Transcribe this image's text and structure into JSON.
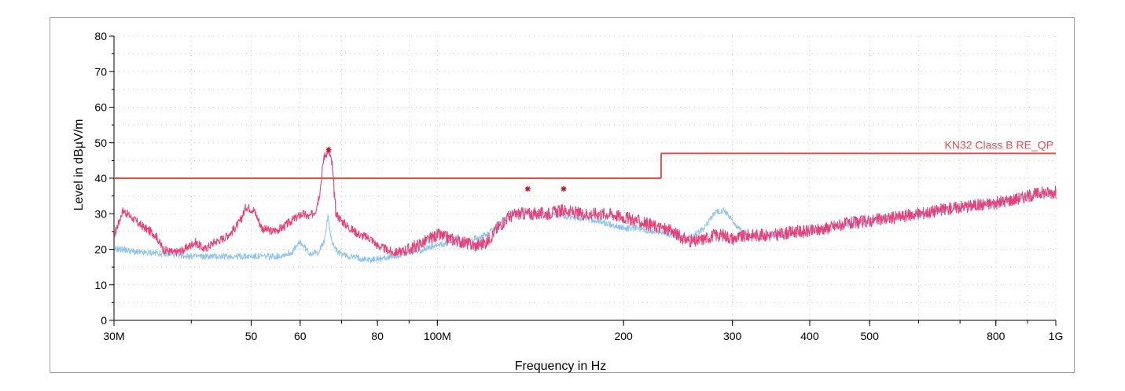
{
  "chart_data": {
    "type": "line",
    "xlabel": "Frequency in Hz",
    "ylabel": "Level in dBµV/m",
    "xscale": "log",
    "xlim": [
      30000000,
      1000000000
    ],
    "ylim": [
      0,
      80
    ],
    "grid": true,
    "x_ticks": [
      {
        "value": 30000000,
        "label": "30M"
      },
      {
        "value": 50000000,
        "label": "50"
      },
      {
        "value": 60000000,
        "label": "60"
      },
      {
        "value": 80000000,
        "label": "80"
      },
      {
        "value": 100000000,
        "label": "100M"
      },
      {
        "value": 200000000,
        "label": "200"
      },
      {
        "value": 300000000,
        "label": "300"
      },
      {
        "value": 400000000,
        "label": "400"
      },
      {
        "value": 500000000,
        "label": "500"
      },
      {
        "value": 800000000,
        "label": "800"
      },
      {
        "value": 1000000000,
        "label": "1G"
      }
    ],
    "y_ticks": [
      0,
      10,
      20,
      30,
      40,
      50,
      60,
      70,
      80
    ],
    "limit_line": {
      "name": "KN32 Class B RE_QP",
      "color": "#e05050",
      "segments": [
        {
          "x": [
            30000000,
            230000000
          ],
          "y": [
            40,
            40
          ]
        },
        {
          "x": [
            230000000,
            1000000000
          ],
          "y": [
            47,
            47
          ]
        }
      ]
    },
    "series": [
      {
        "color": "#e8407a",
        "x": [
          30000000,
          31000000,
          33000000,
          35000000,
          36000000,
          37500000,
          39000000,
          40500000,
          42000000,
          43500000,
          45000000,
          46500000,
          48000000,
          49000000,
          50500000,
          52000000,
          54000000,
          56000000,
          58000000,
          60500000,
          62000000,
          63500000,
          64500000,
          65500000,
          66700000,
          67500000,
          68500000,
          70000000,
          72000000,
          75000000,
          78000000,
          80000000,
          85000000,
          90000000,
          95000000,
          100000000,
          105000000,
          110000000,
          115000000,
          120000000,
          125000000,
          130000000,
          135000000,
          140000000,
          150000000,
          160000000,
          170000000,
          180000000,
          190000000,
          200000000,
          210000000,
          220000000,
          230000000,
          240000000,
          250000000,
          260000000,
          270000000,
          280000000,
          290000000,
          300000000,
          320000000,
          350000000,
          380000000,
          400000000,
          450000000,
          500000000,
          550000000,
          600000000,
          700000000,
          800000000,
          850000000,
          900000000,
          950000000,
          1000000000
        ],
        "y": [
          24,
          31,
          27,
          24,
          20,
          19,
          20,
          22,
          20,
          22,
          23,
          25,
          28,
          32,
          31,
          26,
          25,
          26,
          28,
          30,
          29,
          31,
          36,
          46,
          48,
          44,
          30,
          28,
          26,
          24,
          23,
          21,
          19,
          20,
          22,
          24,
          23,
          22,
          21,
          22,
          26,
          29,
          30,
          30,
          30,
          31,
          30,
          30,
          30,
          29,
          28,
          27,
          26,
          25,
          23,
          22,
          23,
          24,
          24,
          23,
          24,
          24,
          25,
          25,
          27,
          28,
          29,
          30,
          32,
          33,
          34,
          35,
          36,
          36
        ]
      },
      {
        "color": "#8ec4ec",
        "x": [
          30000000,
          31000000,
          33000000,
          35000000,
          40000000,
          45000000,
          50000000,
          55000000,
          58000000,
          60000000,
          62000000,
          64000000,
          65500000,
          66500000,
          67500000,
          69000000,
          72000000,
          78000000,
          85000000,
          90000000,
          95000000,
          100000000,
          105000000,
          110000000,
          115000000,
          120000000,
          125000000,
          130000000,
          135000000,
          140000000,
          150000000,
          160000000,
          170000000,
          180000000,
          190000000,
          200000000,
          210000000,
          220000000,
          230000000,
          240000000,
          250000000,
          260000000,
          270000000,
          280000000,
          290000000,
          300000000,
          310000000,
          320000000,
          350000000,
          400000000,
          500000000,
          600000000,
          700000000,
          800000000,
          900000000,
          1000000000
        ],
        "y": [
          20,
          20,
          19,
          19,
          18,
          18,
          18,
          18,
          19,
          22,
          19,
          19,
          22,
          29,
          22,
          19,
          18,
          17,
          18,
          19,
          20,
          21,
          22,
          22,
          23,
          24,
          27,
          30,
          30,
          30,
          30,
          29,
          29,
          28,
          27,
          26,
          26,
          25,
          25,
          24,
          23,
          24,
          26,
          30,
          31,
          28,
          25,
          24,
          24,
          25,
          28,
          30,
          32,
          33,
          35,
          36
        ]
      }
    ],
    "markers": [
      {
        "x": 66700000,
        "y": 48
      },
      {
        "x": 140000000,
        "y": 37
      },
      {
        "x": 160000000,
        "y": 37
      }
    ]
  }
}
